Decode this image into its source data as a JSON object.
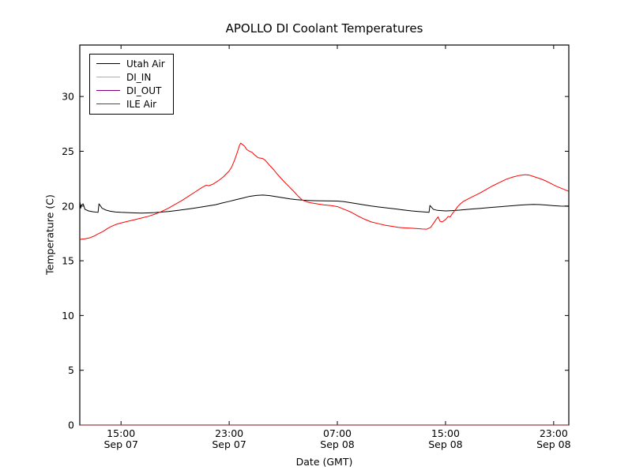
{
  "chart_data": {
    "type": "line",
    "title": "APOLLO DI Coolant Temperatures",
    "xlabel": "Date (GMT)",
    "ylabel": "Temperature (C)",
    "x_unit": "hours since Sep 07 00:00 GMT",
    "xlim": [
      11.95,
      48.12
    ],
    "ylim": [
      0,
      34.7
    ],
    "grid": false,
    "legend_position": "upper left",
    "background_color": "#ffffff",
    "axis_color": "#000000",
    "y_ticks": [
      0,
      5,
      10,
      15,
      20,
      25,
      30
    ],
    "x_ticks": [
      {
        "value": 15,
        "line1": "15:00",
        "line2": "Sep 07"
      },
      {
        "value": 23,
        "line1": "23:00",
        "line2": "Sep 07"
      },
      {
        "value": 31,
        "line1": "07:00",
        "line2": "Sep 08"
      },
      {
        "value": 39,
        "line1": "15:00",
        "line2": "Sep 08"
      },
      {
        "value": 47,
        "line1": "23:00",
        "line2": "Sep 08"
      }
    ],
    "series": [
      {
        "name": "Utah Air",
        "color": "#000000",
        "opacity": 1.0,
        "points": [
          [
            11.97,
            20.3
          ],
          [
            12.02,
            19.8
          ],
          [
            12.07,
            20.1
          ],
          [
            12.2,
            20.2
          ],
          [
            12.33,
            19.7
          ],
          [
            12.6,
            19.55
          ],
          [
            12.9,
            19.48
          ],
          [
            13.3,
            19.42
          ],
          [
            13.37,
            20.2
          ],
          [
            13.6,
            19.8
          ],
          [
            13.9,
            19.62
          ],
          [
            14.2,
            19.52
          ],
          [
            14.6,
            19.45
          ],
          [
            15.0,
            19.42
          ],
          [
            15.5,
            19.4
          ],
          [
            16.0,
            19.37
          ],
          [
            16.5,
            19.35
          ],
          [
            17.0,
            19.37
          ],
          [
            17.5,
            19.4
          ],
          [
            18.0,
            19.45
          ],
          [
            18.5,
            19.5
          ],
          [
            19.0,
            19.57
          ],
          [
            19.5,
            19.65
          ],
          [
            20.0,
            19.73
          ],
          [
            20.5,
            19.82
          ],
          [
            21.0,
            19.92
          ],
          [
            21.5,
            20.02
          ],
          [
            22.0,
            20.12
          ],
          [
            22.5,
            20.28
          ],
          [
            23.0,
            20.42
          ],
          [
            23.5,
            20.58
          ],
          [
            24.0,
            20.72
          ],
          [
            24.5,
            20.88
          ],
          [
            25.0,
            20.97
          ],
          [
            25.5,
            21.0
          ],
          [
            26.0,
            20.95
          ],
          [
            26.5,
            20.85
          ],
          [
            27.0,
            20.75
          ],
          [
            27.5,
            20.65
          ],
          [
            28.0,
            20.58
          ],
          [
            28.5,
            20.53
          ],
          [
            29.0,
            20.5
          ],
          [
            29.5,
            20.48
          ],
          [
            30.0,
            20.47
          ],
          [
            30.5,
            20.46
          ],
          [
            31.0,
            20.45
          ],
          [
            31.5,
            20.4
          ],
          [
            32.0,
            20.3
          ],
          [
            32.5,
            20.2
          ],
          [
            33.0,
            20.1
          ],
          [
            33.5,
            20.0
          ],
          [
            34.0,
            19.92
          ],
          [
            34.5,
            19.85
          ],
          [
            35.0,
            19.78
          ],
          [
            35.5,
            19.7
          ],
          [
            36.0,
            19.62
          ],
          [
            36.5,
            19.55
          ],
          [
            37.0,
            19.5
          ],
          [
            37.5,
            19.45
          ],
          [
            37.78,
            19.42
          ],
          [
            37.85,
            20.05
          ],
          [
            38.1,
            19.7
          ],
          [
            38.4,
            19.6
          ],
          [
            39.0,
            19.55
          ],
          [
            39.5,
            19.58
          ],
          [
            40.0,
            19.62
          ],
          [
            40.5,
            19.68
          ],
          [
            41.0,
            19.73
          ],
          [
            41.5,
            19.78
          ],
          [
            42.0,
            19.83
          ],
          [
            42.5,
            19.88
          ],
          [
            43.0,
            19.93
          ],
          [
            43.5,
            19.98
          ],
          [
            44.0,
            20.03
          ],
          [
            44.5,
            20.08
          ],
          [
            45.0,
            20.12
          ],
          [
            45.5,
            20.15
          ],
          [
            46.0,
            20.13
          ],
          [
            46.5,
            20.08
          ],
          [
            47.0,
            20.03
          ],
          [
            47.5,
            19.99
          ],
          [
            48.1,
            19.97
          ]
        ]
      },
      {
        "name": "DI_IN",
        "color": "#ffa500",
        "opacity": 1.0,
        "points": [
          [
            11.97,
            0.0
          ],
          [
            48.1,
            0.0
          ]
        ]
      },
      {
        "name": "DI_OUT",
        "color": "#800080",
        "opacity": 0.6,
        "points": [
          [
            11.97,
            0.0
          ],
          [
            48.1,
            0.0
          ]
        ]
      },
      {
        "name": "ILE Air",
        "color": "#ff0000",
        "opacity": 1.0,
        "points": [
          [
            11.97,
            16.95
          ],
          [
            12.3,
            17.0
          ],
          [
            12.7,
            17.1
          ],
          [
            13.0,
            17.25
          ],
          [
            13.3,
            17.45
          ],
          [
            13.7,
            17.7
          ],
          [
            14.0,
            17.95
          ],
          [
            14.3,
            18.15
          ],
          [
            14.7,
            18.35
          ],
          [
            15.0,
            18.45
          ],
          [
            15.5,
            18.6
          ],
          [
            16.0,
            18.75
          ],
          [
            16.5,
            18.9
          ],
          [
            17.0,
            19.05
          ],
          [
            17.5,
            19.25
          ],
          [
            18.0,
            19.5
          ],
          [
            18.5,
            19.8
          ],
          [
            19.0,
            20.15
          ],
          [
            19.5,
            20.5
          ],
          [
            20.0,
            20.9
          ],
          [
            20.5,
            21.3
          ],
          [
            21.0,
            21.7
          ],
          [
            21.3,
            21.9
          ],
          [
            21.5,
            21.85
          ],
          [
            21.8,
            22.0
          ],
          [
            22.0,
            22.15
          ],
          [
            22.3,
            22.4
          ],
          [
            22.6,
            22.7
          ],
          [
            23.0,
            23.2
          ],
          [
            23.2,
            23.6
          ],
          [
            23.4,
            24.2
          ],
          [
            23.6,
            24.9
          ],
          [
            23.75,
            25.5
          ],
          [
            23.85,
            25.74
          ],
          [
            24.0,
            25.6
          ],
          [
            24.15,
            25.45
          ],
          [
            24.3,
            25.15
          ],
          [
            24.5,
            25.0
          ],
          [
            24.7,
            24.9
          ],
          [
            24.85,
            24.7
          ],
          [
            25.0,
            24.55
          ],
          [
            25.15,
            24.4
          ],
          [
            25.45,
            24.35
          ],
          [
            25.65,
            24.2
          ],
          [
            26.0,
            23.7
          ],
          [
            26.3,
            23.3
          ],
          [
            26.6,
            22.85
          ],
          [
            27.0,
            22.3
          ],
          [
            27.4,
            21.8
          ],
          [
            27.8,
            21.3
          ],
          [
            28.1,
            20.9
          ],
          [
            28.4,
            20.55
          ],
          [
            28.7,
            20.4
          ],
          [
            29.0,
            20.3
          ],
          [
            29.5,
            20.2
          ],
          [
            30.0,
            20.1
          ],
          [
            30.5,
            20.05
          ],
          [
            31.0,
            19.95
          ],
          [
            31.5,
            19.7
          ],
          [
            32.0,
            19.45
          ],
          [
            32.5,
            19.1
          ],
          [
            33.0,
            18.8
          ],
          [
            33.5,
            18.55
          ],
          [
            34.0,
            18.4
          ],
          [
            34.5,
            18.25
          ],
          [
            35.0,
            18.15
          ],
          [
            35.5,
            18.05
          ],
          [
            36.0,
            18.0
          ],
          [
            36.5,
            17.97
          ],
          [
            37.0,
            17.93
          ],
          [
            37.3,
            17.9
          ],
          [
            37.6,
            17.88
          ],
          [
            37.9,
            18.05
          ],
          [
            38.1,
            18.4
          ],
          [
            38.35,
            18.85
          ],
          [
            38.45,
            19.0
          ],
          [
            38.6,
            18.6
          ],
          [
            38.75,
            18.55
          ],
          [
            39.0,
            18.75
          ],
          [
            39.2,
            19.05
          ],
          [
            39.35,
            19.0
          ],
          [
            39.5,
            19.3
          ],
          [
            39.7,
            19.6
          ],
          [
            39.9,
            19.95
          ],
          [
            40.1,
            20.2
          ],
          [
            40.3,
            20.4
          ],
          [
            40.6,
            20.6
          ],
          [
            41.0,
            20.85
          ],
          [
            41.5,
            21.15
          ],
          [
            42.0,
            21.5
          ],
          [
            42.5,
            21.85
          ],
          [
            43.0,
            22.15
          ],
          [
            43.5,
            22.45
          ],
          [
            44.0,
            22.65
          ],
          [
            44.5,
            22.8
          ],
          [
            44.9,
            22.86
          ],
          [
            45.2,
            22.82
          ],
          [
            45.5,
            22.7
          ],
          [
            46.0,
            22.5
          ],
          [
            46.4,
            22.3
          ],
          [
            46.8,
            22.05
          ],
          [
            47.2,
            21.8
          ],
          [
            47.6,
            21.6
          ],
          [
            48.1,
            21.35
          ]
        ]
      }
    ]
  }
}
